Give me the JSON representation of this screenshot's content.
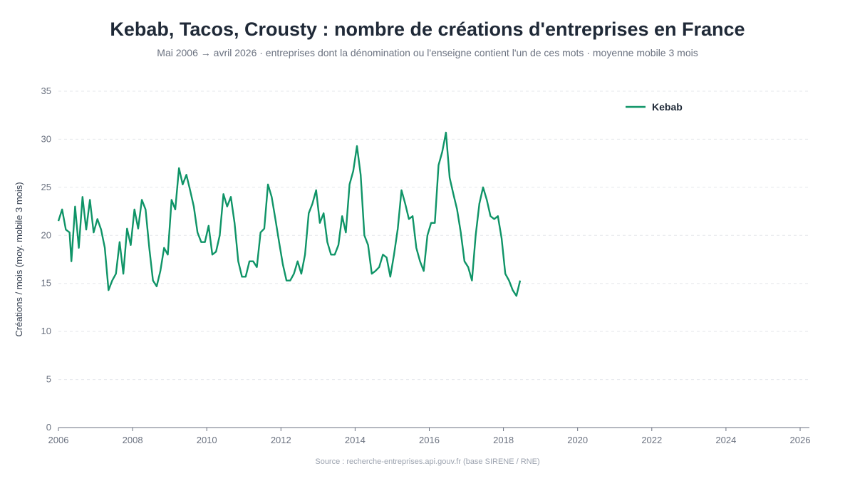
{
  "chart_data": {
    "type": "line",
    "title": "Kebab, Tacos, Crousty : nombre de créations d'entreprises en France",
    "subtitle": "Mai 2006 → avril 2026 · entreprises dont la dénomination ou l'enseigne contient l'un de ces mots · moyenne mobile 3 mois",
    "ylabel": "Créations / mois (moy. mobile 3 mois)",
    "xlabel": "",
    "xlim": [
      2006.0,
      2026.25
    ],
    "ylim": [
      0,
      35
    ],
    "x_ticks": [
      "2006",
      "2008",
      "2010",
      "2012",
      "2014",
      "2016",
      "2018",
      "2020",
      "2022",
      "2024",
      "2026"
    ],
    "y_ticks": [
      "0",
      "5",
      "10",
      "15",
      "20",
      "25",
      "30",
      "35"
    ],
    "grid": "horizontal dashed",
    "legend_position": "top-right",
    "source": "Source : recherche-entreprises.api.gouv.fr (base SIRENE / RNE)",
    "series": [
      {
        "name": "Kebab",
        "color": "#0f9467",
        "points": [
          [
            2006.0,
            21.5
          ],
          [
            2006.1,
            22.7
          ],
          [
            2006.2,
            20.6
          ],
          [
            2006.3,
            20.3
          ],
          [
            2006.35,
            17.3
          ],
          [
            2006.45,
            23.0
          ],
          [
            2006.55,
            18.7
          ],
          [
            2006.65,
            24.0
          ],
          [
            2006.75,
            20.6
          ],
          [
            2006.85,
            23.7
          ],
          [
            2006.95,
            20.3
          ],
          [
            2007.05,
            21.7
          ],
          [
            2007.15,
            20.6
          ],
          [
            2007.25,
            18.7
          ],
          [
            2007.35,
            14.3
          ],
          [
            2007.45,
            15.3
          ],
          [
            2007.55,
            16.0
          ],
          [
            2007.65,
            19.3
          ],
          [
            2007.75,
            16.0
          ],
          [
            2007.85,
            20.7
          ],
          [
            2007.95,
            19.0
          ],
          [
            2008.05,
            22.7
          ],
          [
            2008.15,
            20.7
          ],
          [
            2008.25,
            23.7
          ],
          [
            2008.35,
            22.7
          ],
          [
            2008.45,
            18.7
          ],
          [
            2008.55,
            15.3
          ],
          [
            2008.65,
            14.7
          ],
          [
            2008.75,
            16.3
          ],
          [
            2008.85,
            18.7
          ],
          [
            2008.95,
            18.0
          ],
          [
            2009.05,
            23.7
          ],
          [
            2009.15,
            22.7
          ],
          [
            2009.25,
            27.0
          ],
          [
            2009.35,
            25.3
          ],
          [
            2009.45,
            26.3
          ],
          [
            2009.55,
            24.7
          ],
          [
            2009.65,
            23.0
          ],
          [
            2009.75,
            20.3
          ],
          [
            2009.85,
            19.3
          ],
          [
            2009.95,
            19.3
          ],
          [
            2010.05,
            21.0
          ],
          [
            2010.15,
            18.0
          ],
          [
            2010.25,
            18.3
          ],
          [
            2010.35,
            20.0
          ],
          [
            2010.45,
            24.3
          ],
          [
            2010.55,
            23.0
          ],
          [
            2010.65,
            24.0
          ],
          [
            2010.75,
            21.3
          ],
          [
            2010.85,
            17.3
          ],
          [
            2010.95,
            15.7
          ],
          [
            2011.05,
            15.7
          ],
          [
            2011.15,
            17.3
          ],
          [
            2011.25,
            17.3
          ],
          [
            2011.35,
            16.7
          ],
          [
            2011.45,
            20.3
          ],
          [
            2011.55,
            20.7
          ],
          [
            2011.65,
            25.3
          ],
          [
            2011.75,
            24.0
          ],
          [
            2011.85,
            21.7
          ],
          [
            2011.95,
            19.3
          ],
          [
            2012.05,
            17.0
          ],
          [
            2012.15,
            15.3
          ],
          [
            2012.25,
            15.3
          ],
          [
            2012.35,
            16.0
          ],
          [
            2012.45,
            17.3
          ],
          [
            2012.55,
            16.0
          ],
          [
            2012.65,
            18.0
          ],
          [
            2012.75,
            22.3
          ],
          [
            2012.85,
            23.3
          ],
          [
            2012.95,
            24.7
          ],
          [
            2013.05,
            21.3
          ],
          [
            2013.15,
            22.3
          ],
          [
            2013.25,
            19.3
          ],
          [
            2013.35,
            18.0
          ],
          [
            2013.45,
            18.0
          ],
          [
            2013.55,
            19.0
          ],
          [
            2013.65,
            22.0
          ],
          [
            2013.75,
            20.3
          ],
          [
            2013.85,
            25.3
          ],
          [
            2013.95,
            26.7
          ],
          [
            2014.05,
            29.3
          ],
          [
            2014.15,
            26.3
          ],
          [
            2014.25,
            20.0
          ],
          [
            2014.35,
            19.0
          ],
          [
            2014.45,
            16.0
          ],
          [
            2014.55,
            16.3
          ],
          [
            2014.65,
            16.7
          ],
          [
            2014.75,
            18.0
          ],
          [
            2014.85,
            17.7
          ],
          [
            2014.95,
            15.7
          ],
          [
            2015.05,
            18.0
          ],
          [
            2015.15,
            20.7
          ],
          [
            2015.25,
            24.7
          ],
          [
            2015.35,
            23.3
          ],
          [
            2015.45,
            21.7
          ],
          [
            2015.55,
            22.0
          ],
          [
            2015.65,
            18.7
          ],
          [
            2015.75,
            17.3
          ],
          [
            2015.85,
            16.3
          ],
          [
            2015.95,
            20.0
          ],
          [
            2016.05,
            21.3
          ],
          [
            2016.15,
            21.3
          ],
          [
            2016.25,
            27.3
          ],
          [
            2016.35,
            28.7
          ],
          [
            2016.45,
            30.7
          ],
          [
            2016.55,
            26.0
          ],
          [
            2016.65,
            24.3
          ],
          [
            2016.75,
            22.7
          ],
          [
            2016.85,
            20.3
          ],
          [
            2016.95,
            17.3
          ],
          [
            2017.05,
            16.7
          ],
          [
            2017.15,
            15.3
          ],
          [
            2017.25,
            20.0
          ],
          [
            2017.35,
            23.3
          ],
          [
            2017.45,
            25.0
          ],
          [
            2017.55,
            23.7
          ],
          [
            2017.65,
            22.0
          ],
          [
            2017.75,
            21.7
          ],
          [
            2017.85,
            22.0
          ],
          [
            2017.95,
            19.7
          ],
          [
            2018.05,
            16.0
          ],
          [
            2018.15,
            15.3
          ],
          [
            2018.25,
            14.3
          ],
          [
            2018.35,
            13.7
          ],
          [
            2018.45,
            15.3
          ]
        ]
      }
    ]
  }
}
